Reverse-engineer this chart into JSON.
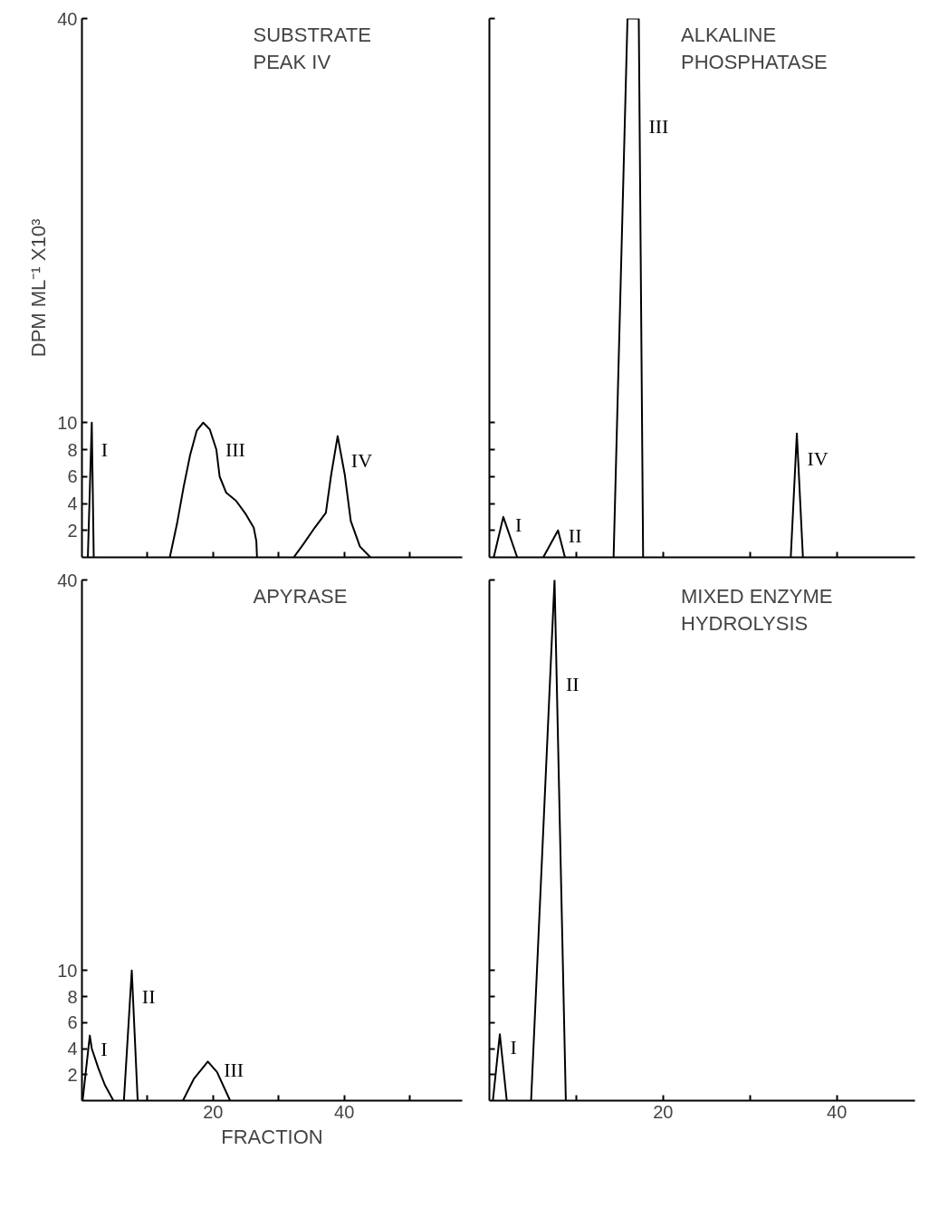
{
  "chart_data": [
    {
      "type": "line",
      "title": "SUBSTRATE\nPEAK IV",
      "ylabel": "DPM ML⁻¹ X10³",
      "xlim": [
        0,
        58
      ],
      "xticks": [
        10,
        20,
        30,
        40,
        50
      ],
      "ylim": [
        0,
        40
      ],
      "yticks": [
        2,
        4,
        6,
        8,
        10,
        40
      ],
      "tick_labels": "y",
      "grid": false,
      "series": [
        {
          "name": "I",
          "color": "#000000",
          "x": [
            0.9,
            1.5,
            1.8
          ],
          "values": [
            0,
            10,
            0
          ]
        },
        {
          "name": "III",
          "color": "#000000",
          "x": [
            13.4,
            14.5,
            15.5,
            16.5,
            17.5,
            18.5,
            19.5,
            20.5,
            21,
            22,
            23.5,
            25,
            26.2,
            26.6,
            26.7
          ],
          "values": [
            0,
            2.5,
            5.2,
            7.6,
            9.4,
            10,
            9.5,
            8,
            6,
            4.8,
            4.2,
            3.2,
            2.2,
            1.2,
            0
          ]
        },
        {
          "name": "IV",
          "color": "#000000",
          "x": [
            32.3,
            33.8,
            35.5,
            37.2,
            38,
            39,
            40.1,
            41,
            42.4,
            44
          ],
          "values": [
            0,
            1,
            2.2,
            3.3,
            6.1,
            9,
            6.1,
            2.7,
            0.8,
            0
          ]
        }
      ]
    },
    {
      "type": "line",
      "title": "ALKALINE\nPHOSPHATASE",
      "xlim": [
        0,
        49
      ],
      "xticks": [
        10,
        20,
        30,
        40
      ],
      "ylim": [
        0,
        40
      ],
      "yticks": [
        2,
        4,
        6,
        8,
        10,
        40
      ],
      "tick_labels": false,
      "grid": false,
      "series": [
        {
          "name": "I",
          "color": "#000000",
          "x": [
            0.5,
            1.6,
            3.2
          ],
          "values": [
            0,
            3,
            0
          ]
        },
        {
          "name": "II",
          "color": "#000000",
          "x": [
            6.2,
            7.9,
            8.7
          ],
          "values": [
            0,
            2,
            0
          ]
        },
        {
          "name": "III",
          "color": "#000000",
          "x": [
            14.3,
            15.9,
            17.2,
            17.7
          ],
          "values": [
            0,
            40,
            40,
            0
          ]
        },
        {
          "name": "IV",
          "color": "#000000",
          "x": [
            34.7,
            35.4,
            36.1
          ],
          "values": [
            0,
            9.2,
            0
          ]
        }
      ]
    },
    {
      "type": "line",
      "title": "APYRASE",
      "xlabel": "FRACTION",
      "xlim": [
        0,
        58
      ],
      "xticks": [
        {
          "value": 10,
          "label": null
        },
        20,
        {
          "value": 30,
          "label": null
        },
        40,
        {
          "value": 50,
          "label": null
        }
      ],
      "ylim": [
        0,
        40
      ],
      "yticks": [
        2,
        4,
        6,
        8,
        10,
        40
      ],
      "grid": false,
      "series": [
        {
          "name": "I",
          "color": "#000000",
          "x": [
            0.1,
            1.2,
            1.5,
            2.5,
            3.5,
            4.8
          ],
          "values": [
            0,
            5,
            4,
            2.5,
            1.2,
            0
          ]
        },
        {
          "name": "II",
          "color": "#000000",
          "x": [
            6.4,
            7.6,
            8.5
          ],
          "values": [
            0,
            10,
            0
          ]
        },
        {
          "name": "III",
          "color": "#000000",
          "x": [
            15.4,
            17.1,
            19.2,
            20.6,
            22.6
          ],
          "values": [
            0,
            1.7,
            3,
            2.2,
            0
          ]
        }
      ]
    },
    {
      "type": "line",
      "title": "MIXED ENZYME\nHYDROLYSIS",
      "xlim": [
        0,
        49
      ],
      "xticks": [
        {
          "value": 10,
          "label": null
        },
        20,
        {
          "value": 30,
          "label": null
        },
        40
      ],
      "ylim": [
        0,
        40
      ],
      "yticks": [
        2,
        4,
        6,
        8,
        10,
        40
      ],
      "tick_labels": "x",
      "grid": false,
      "series": [
        {
          "name": "I",
          "color": "#000000",
          "x": [
            0.4,
            1.2,
            2.0
          ],
          "values": [
            0,
            5.1,
            0
          ]
        },
        {
          "name": "II",
          "color": "#000000",
          "x": [
            4.8,
            7.5,
            8.8
          ],
          "values": [
            0,
            40,
            0
          ]
        }
      ]
    }
  ]
}
